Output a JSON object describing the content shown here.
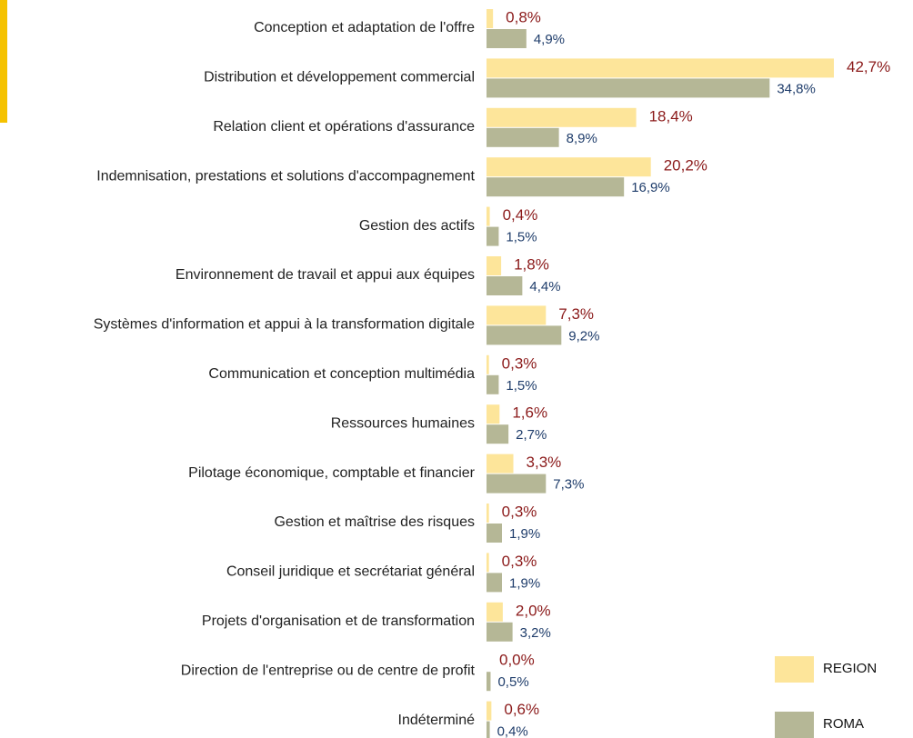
{
  "chart_data": {
    "type": "hbar",
    "categories": [
      "Conception et adaptation de l'offre",
      "Distribution et développement commercial",
      "Relation client et opérations d'assurance",
      "Indemnisation, prestations et solutions d'accompagnement",
      "Gestion des actifs",
      "Environnement de travail et appui aux équipes",
      "Systèmes d'information et appui à la transformation digitale",
      "Communication et conception multimédia",
      "Ressources humaines",
      "Pilotage économique, comptable et financier",
      "Gestion et maîtrise des risques",
      "Conseil juridique et secrétariat général",
      "Projets d'organisation et de transformation",
      "Direction de l'entreprise ou de centre de profit",
      "Indéterminé"
    ],
    "series": [
      {
        "name": "REGION",
        "color": "#fde59a",
        "label_color": "#8b1a1a",
        "values": [
          0.8,
          42.7,
          18.4,
          20.2,
          0.4,
          1.8,
          7.3,
          0.3,
          1.6,
          3.3,
          0.3,
          0.3,
          2.0,
          0.0,
          0.6
        ],
        "value_labels": [
          "0,8%",
          "42,7%",
          "18,4%",
          "20,2%",
          "0,4%",
          "1,8%",
          "7,3%",
          "0,3%",
          "1,6%",
          "3,3%",
          "0,3%",
          "0,3%",
          "2,0%",
          "0,0%",
          "0,6%"
        ]
      },
      {
        "name": "ROMA",
        "color": "#b5b796",
        "label_color": "#1f3d6b",
        "values": [
          4.9,
          34.8,
          8.9,
          16.9,
          1.5,
          4.4,
          9.2,
          1.5,
          2.7,
          7.3,
          1.9,
          1.9,
          3.2,
          0.5,
          0.4
        ],
        "value_labels": [
          "4,9%",
          "34,8%",
          "8,9%",
          "16,9%",
          "1,5%",
          "4,4%",
          "9,2%",
          "1,5%",
          "2,7%",
          "7,3%",
          "1,9%",
          "1,9%",
          "3,2%",
          "0,5%",
          "0,4%"
        ]
      }
    ],
    "legend": "bottom-right"
  }
}
